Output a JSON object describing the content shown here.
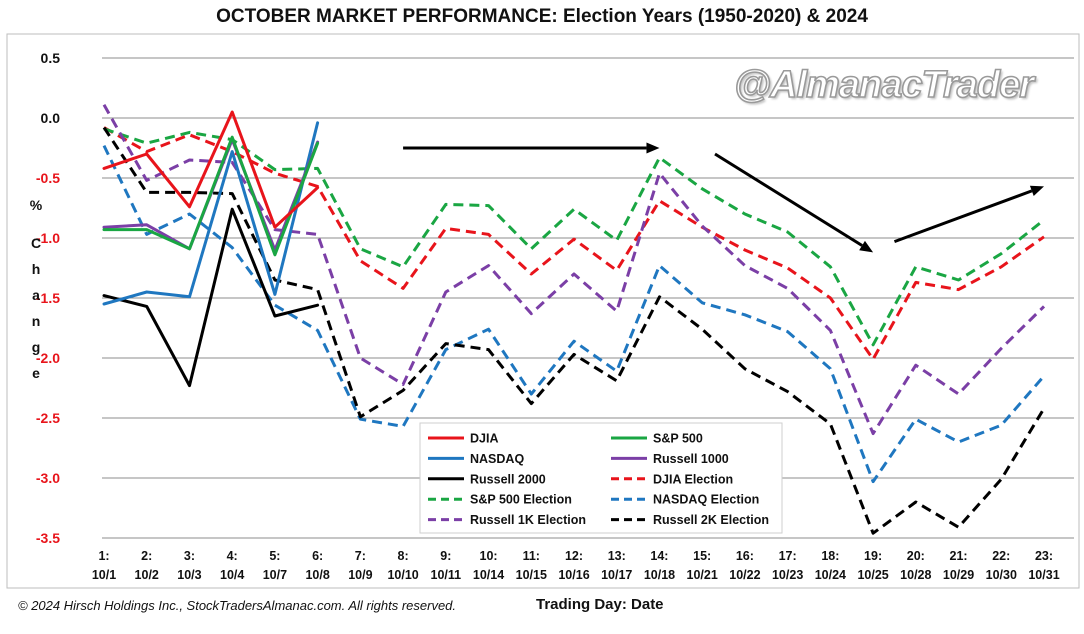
{
  "title": "OCTOBER MARKET PERFORMANCE: Election Years (1950-2020) & 2024",
  "watermark": "@AlmanacTrader",
  "footer": {
    "copyright": "© 2024 Hirsch Holdings Inc., StockTradersAlmanac.com. All rights reserved.",
    "xlabel": "Trading Day: Date"
  },
  "chart_data": {
    "type": "line",
    "title": "OCTOBER MARKET PERFORMANCE: Election Years (1950-2020) & 2024",
    "xlabel": "Trading Day: Date",
    "ylabel": "% Change",
    "ylim": [
      -3.5,
      0.5
    ],
    "yticks": [
      0.5,
      0.0,
      -0.5,
      -1.0,
      -1.5,
      -2.0,
      -2.5,
      -3.0,
      -3.5
    ],
    "ytick_labels": [
      "0.5",
      "0.0",
      "-0.5",
      "-1.0",
      "-1.5",
      "-2.0",
      "-2.5",
      "-3.0",
      "-3.5"
    ],
    "grid": true,
    "legend_position": "bottom-center",
    "categories_top": [
      "1:",
      "2:",
      "3:",
      "4:",
      "5:",
      "6:",
      "7:",
      "8:",
      "9:",
      "10:",
      "11:",
      "12:",
      "13:",
      "14:",
      "15:",
      "16:",
      "17:",
      "18:",
      "19:",
      "20:",
      "21:",
      "22:",
      "23:"
    ],
    "categories_bottom": [
      "10/1",
      "10/2",
      "10/3",
      "10/4",
      "10/7",
      "10/8",
      "10/9",
      "10/10",
      "10/11",
      "10/14",
      "10/15",
      "10/16",
      "10/17",
      "10/18",
      "10/21",
      "10/22",
      "10/23",
      "10/24",
      "10/25",
      "10/28",
      "10/29",
      "10/30",
      "10/31"
    ],
    "series": [
      {
        "name": "DJIA",
        "color": "#e8141b",
        "dash": false,
        "values": [
          -0.42,
          -0.3,
          -0.74,
          0.05,
          -0.91,
          -0.58
        ]
      },
      {
        "name": "S&P 500",
        "color": "#1aa643",
        "dash": false,
        "values": [
          -0.93,
          -0.93,
          -1.09,
          -0.16,
          -1.14,
          -0.21
        ]
      },
      {
        "name": "NASDAQ",
        "color": "#1f77c0",
        "dash": false,
        "values": [
          -1.55,
          -1.45,
          -1.49,
          -0.28,
          -1.47,
          -0.04
        ]
      },
      {
        "name": "Russell 1000",
        "color": "#7b3fa6",
        "dash": false,
        "values": [
          -0.91,
          -0.89,
          -1.09,
          -0.18,
          -1.1,
          -0.2
        ]
      },
      {
        "name": "Russell 2000",
        "color": "#000000",
        "dash": false,
        "values": [
          -1.48,
          -1.57,
          -2.23,
          -0.76,
          -1.65,
          -1.56
        ]
      },
      {
        "name": "DJIA Election",
        "color": "#e8141b",
        "dash": true,
        "values": [
          -0.08,
          -0.28,
          -0.14,
          -0.28,
          -0.46,
          -0.57,
          -1.19,
          -1.42,
          -0.92,
          -0.97,
          -1.3,
          -1.01,
          -1.27,
          -0.69,
          -0.91,
          -1.1,
          -1.25,
          -1.5,
          -2.01,
          -1.37,
          -1.43,
          -1.24,
          -0.99
        ]
      },
      {
        "name": "S&P 500 Election",
        "color": "#1aa643",
        "dash": true,
        "values": [
          -0.09,
          -0.21,
          -0.12,
          -0.18,
          -0.43,
          -0.42,
          -1.09,
          -1.24,
          -0.72,
          -0.73,
          -1.09,
          -0.76,
          -1.02,
          -0.33,
          -0.59,
          -0.8,
          -0.95,
          -1.24,
          -1.89,
          -1.24,
          -1.35,
          -1.13,
          -0.85
        ]
      },
      {
        "name": "NASDAQ Election",
        "color": "#1f77c0",
        "dash": true,
        "values": [
          -0.23,
          -0.97,
          -0.8,
          -1.08,
          -1.56,
          -1.77,
          -2.51,
          -2.57,
          -1.93,
          -1.76,
          -2.3,
          -1.86,
          -2.11,
          -1.23,
          -1.54,
          -1.64,
          -1.78,
          -2.09,
          -3.03,
          -2.51,
          -2.7,
          -2.56,
          -2.15
        ]
      },
      {
        "name": "Russell 1K Election",
        "color": "#7b3fa6",
        "dash": true,
        "values": [
          0.11,
          -0.52,
          -0.35,
          -0.37,
          -0.93,
          -0.97,
          -2.0,
          -2.22,
          -1.45,
          -1.23,
          -1.63,
          -1.3,
          -1.61,
          -0.46,
          -0.9,
          -1.23,
          -1.42,
          -1.77,
          -2.63,
          -2.06,
          -2.3,
          -1.92,
          -1.57
        ]
      },
      {
        "name": "Russell 2K Election",
        "color": "#000000",
        "dash": true,
        "values": [
          -0.08,
          -0.62,
          -0.62,
          -0.63,
          -1.35,
          -1.43,
          -2.49,
          -2.27,
          -1.88,
          -1.93,
          -2.38,
          -1.97,
          -2.19,
          -1.49,
          -1.76,
          -2.09,
          -2.28,
          -2.55,
          -3.46,
          -3.2,
          -3.41,
          -3.01,
          -2.42
        ]
      }
    ],
    "annotations": [
      {
        "type": "arrow",
        "from": [
          7.0,
          -0.25
        ],
        "to": [
          13.0,
          -0.25
        ]
      },
      {
        "type": "arrow",
        "from": [
          14.3,
          -0.3
        ],
        "to": [
          18.0,
          -1.12
        ]
      },
      {
        "type": "arrow",
        "from": [
          18.5,
          -1.03
        ],
        "to": [
          22.0,
          -0.57
        ]
      }
    ]
  }
}
